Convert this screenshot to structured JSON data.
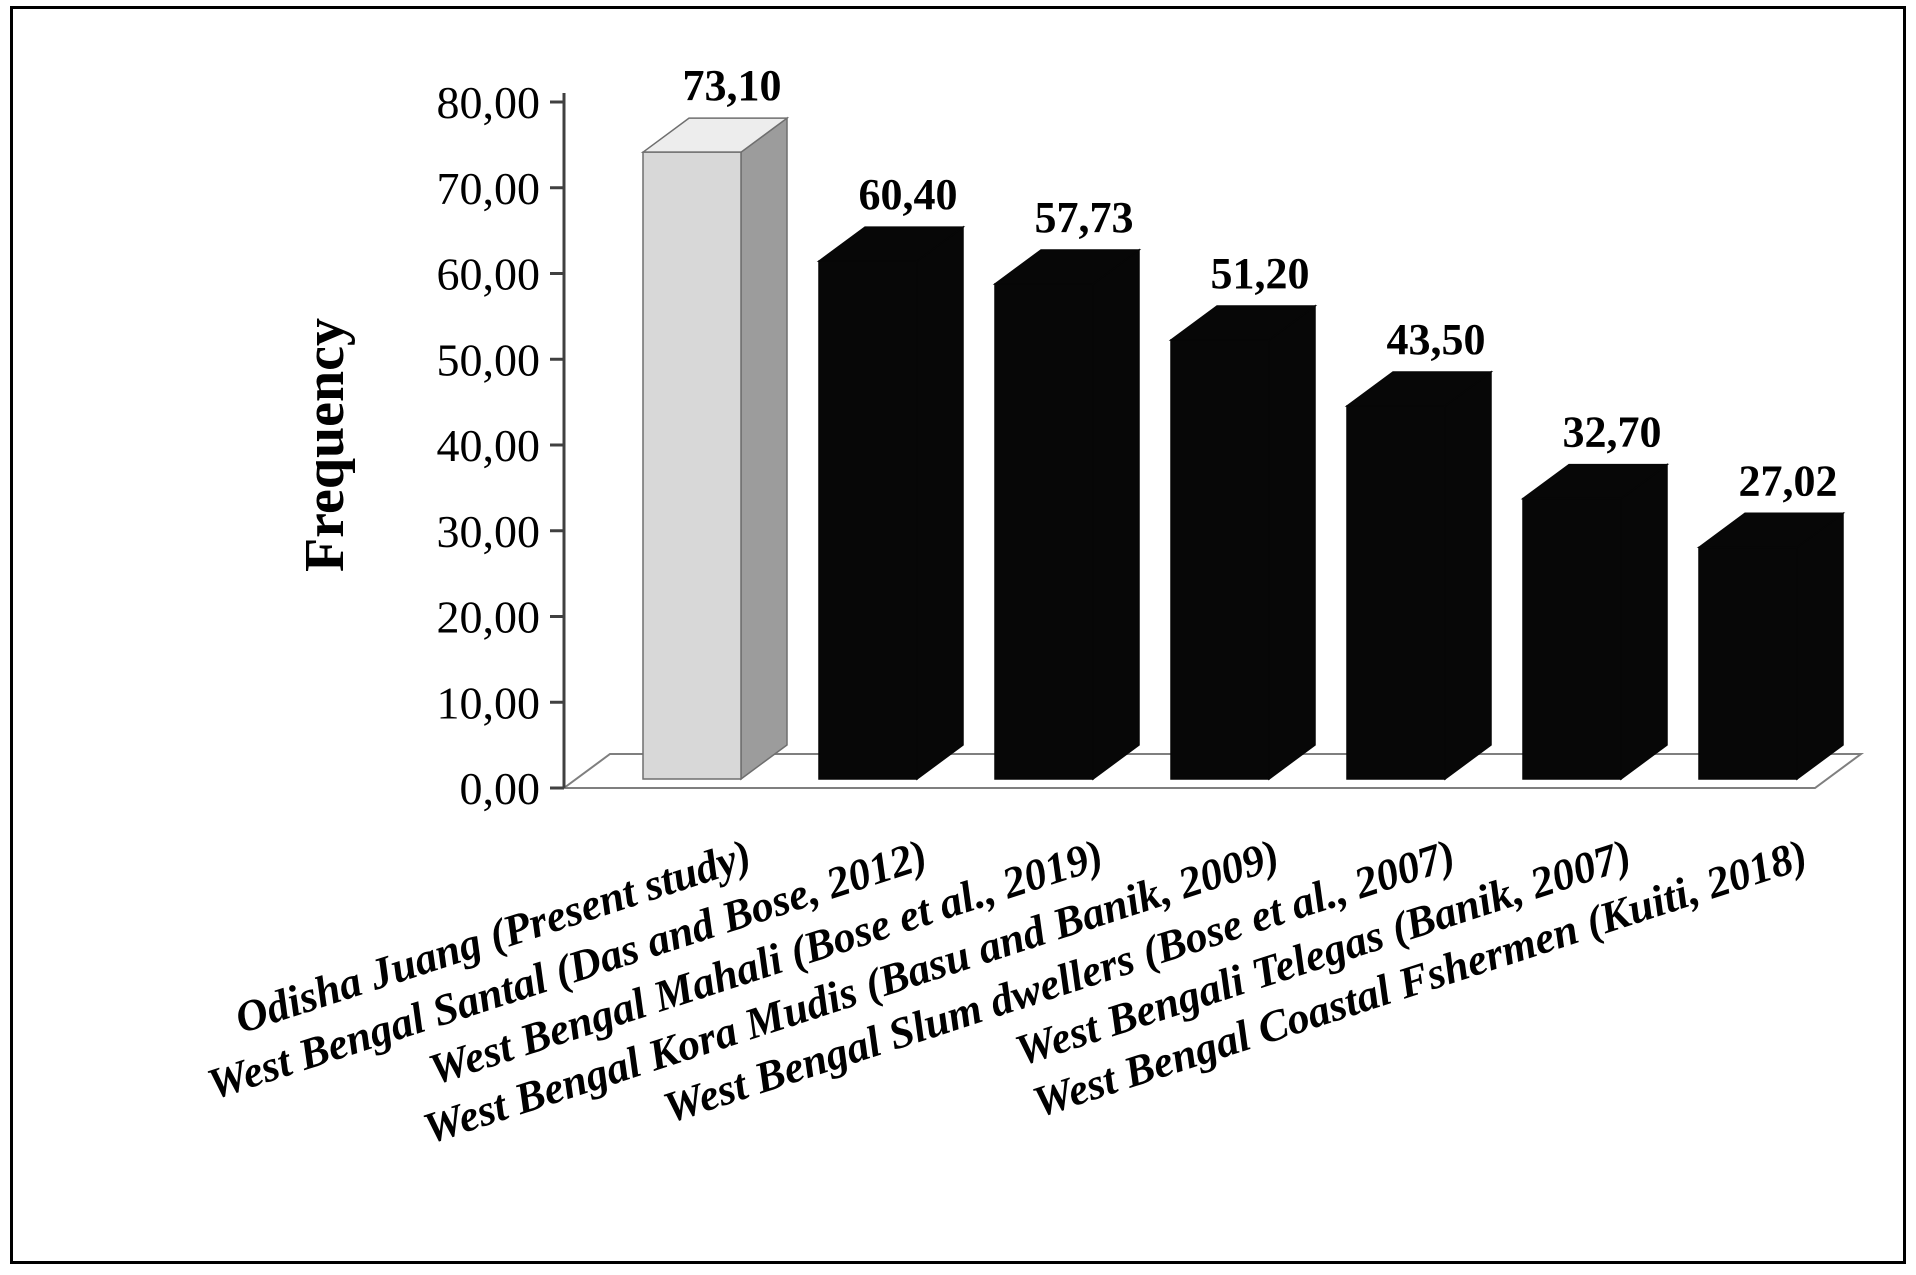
{
  "chart_data": {
    "type": "bar",
    "title": "",
    "xlabel": "",
    "ylabel": "Frequency",
    "ylim": [
      0,
      80
    ],
    "ytick_step": 10,
    "grid": false,
    "legend": "none",
    "effect": "3d",
    "decimal_separator": ",",
    "ytick_labels": [
      "0,00",
      "10,00",
      "20,00",
      "30,00",
      "40,00",
      "50,00",
      "60,00",
      "70,00",
      "80,00"
    ],
    "categories": [
      "Odisha Juang (Present study)",
      "West Bengal Santal (Das and Bose, 2012)",
      "West Bengal Mahali (Bose et al., 2019)",
      "West Bengal Kora Mudis (Basu and Banik, 2009)",
      "West Bengal Slum dwellers (Bose et al., 2007)",
      "West Bengali Telegas (Banik, 2007)",
      "West Bengal Coastal Fshermen (Kuiti, 2018)"
    ],
    "values": [
      73.1,
      60.4,
      57.73,
      51.2,
      43.5,
      32.7,
      27.02
    ],
    "value_labels": [
      "73,10",
      "60,40",
      "57,73",
      "51,20",
      "43,50",
      "32,70",
      "27,02"
    ],
    "highlight_index": 0,
    "bar_colors": [
      {
        "front": "#d8d8d8",
        "top": "#ededed",
        "side": "#9c9c9c",
        "stroke": "#6f6f6f"
      },
      {
        "front": "#070707",
        "top": "#070707",
        "side": "#070707",
        "stroke": "#070707"
      }
    ]
  },
  "colors": {
    "frame_border": "#000000",
    "axis": "#404040",
    "floor_stroke": "#7f7f7f",
    "background": "#ffffff",
    "text": "#000000"
  }
}
